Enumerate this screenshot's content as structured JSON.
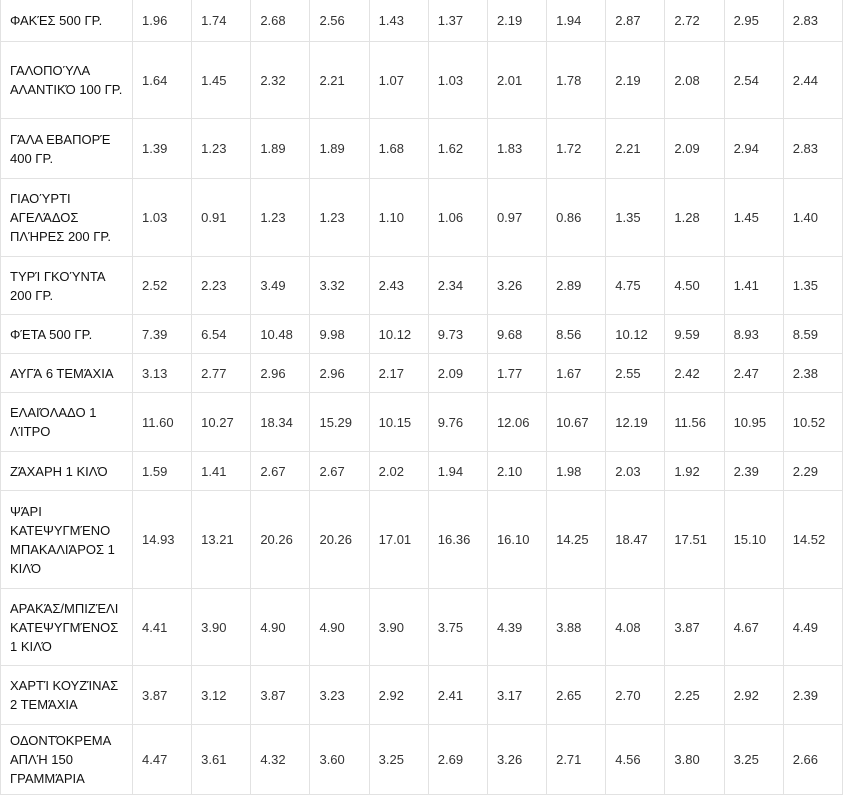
{
  "table": {
    "rows": [
      [
        "ΦΑΚΈΣ 500 ΓΡ.",
        "1.96",
        "1.74",
        "2.68",
        "2.56",
        "1.43",
        "1.37",
        "2.19",
        "1.94",
        "2.87",
        "2.72",
        "2.95",
        "2.83"
      ],
      [
        "ΓΑΛΟΠΟΎΛΑ ΑΛΑΝΤΙΚΌ 100 ΓΡ.",
        "1.64",
        "1.45",
        "2.32",
        "2.21",
        "1.07",
        "1.03",
        "2.01",
        "1.78",
        "2.19",
        "2.08",
        "2.54",
        "2.44"
      ],
      [
        "ΓΆΛΑ ΕΒΑΠΟΡΈ 400 ΓΡ.",
        "1.39",
        "1.23",
        "1.89",
        "1.89",
        "1.68",
        "1.62",
        "1.83",
        "1.72",
        "2.21",
        "2.09",
        "2.94",
        "2.83"
      ],
      [
        "ΓΙΑΟΎΡΤΙ ΑΓΕΛΆΔΟΣ ΠΛΉΡΕΣ 200 ΓΡ.",
        "1.03",
        "0.91",
        "1.23",
        "1.23",
        "1.10",
        "1.06",
        "0.97",
        "0.86",
        "1.35",
        "1.28",
        "1.45",
        "1.40"
      ],
      [
        "ΤΥΡΊ ΓΚΟΎΝΤΑ 200 ΓΡ.",
        "2.52",
        "2.23",
        "3.49",
        "3.32",
        "2.43",
        "2.34",
        "3.26",
        "2.89",
        "4.75",
        "4.50",
        "1.41",
        "1.35"
      ],
      [
        "ΦΈΤΑ 500 ΓΡ.",
        "7.39",
        "6.54",
        "10.48",
        "9.98",
        "10.12",
        "9.73",
        "9.68",
        "8.56",
        "10.12",
        "9.59",
        "8.93",
        "8.59"
      ],
      [
        "ΑΥΓΆ 6 ΤΕΜΆΧΙΑ",
        "3.13",
        "2.77",
        "2.96",
        "2.96",
        "2.17",
        "2.09",
        "1.77",
        "1.67",
        "2.55",
        "2.42",
        "2.47",
        "2.38"
      ],
      [
        "ΕΛΑΙΌΛΑΔΟ 1 ΛΊΤΡΟ",
        "11.60",
        "10.27",
        "18.34",
        "15.29",
        "10.15",
        "9.76",
        "12.06",
        "10.67",
        "12.19",
        "11.56",
        "10.95",
        "10.52"
      ],
      [
        "ΖΆΧΑΡΗ 1 ΚΙΛΌ",
        "1.59",
        "1.41",
        "2.67",
        "2.67",
        "2.02",
        "1.94",
        "2.10",
        "1.98",
        "2.03",
        "1.92",
        "2.39",
        "2.29"
      ],
      [
        "ΨΆΡΙ ΚΑΤΕΨΥΓΜΈΝΟ ΜΠΑΚΑΛΙΆΡΟΣ 1 ΚΙΛΌ",
        "14.93",
        "13.21",
        "20.26",
        "20.26",
        "17.01",
        "16.36",
        "16.10",
        "14.25",
        "18.47",
        "17.51",
        "15.10",
        "14.52"
      ],
      [
        "ΑΡΑΚΆΣ/ΜΠΙΖΈΛΙ ΚΑΤΕΨΥΓΜΈΝΟΣ 1 ΚΙΛΌ",
        "4.41",
        "3.90",
        "4.90",
        "4.90",
        "3.90",
        "3.75",
        "4.39",
        "3.88",
        "4.08",
        "3.87",
        "4.67",
        "4.49"
      ],
      [
        "ΧΑΡΤΊ ΚΟΥΖΊΝΑΣ 2 ΤΕΜΆΧΙΑ",
        "3.87",
        "3.12",
        "3.87",
        "3.23",
        "2.92",
        "2.41",
        "3.17",
        "2.65",
        "2.70",
        "2.25",
        "2.92",
        "2.39"
      ],
      [
        "ΟΔΟΝΤΌΚΡΕΜΑ ΑΠΛΉ 150 ΓΡΑΜΜΆΡΙΑ",
        "4.47",
        "3.61",
        "4.32",
        "3.60",
        "3.25",
        "2.69",
        "3.26",
        "2.71",
        "4.56",
        "3.80",
        "3.25",
        "2.66"
      ]
    ]
  }
}
